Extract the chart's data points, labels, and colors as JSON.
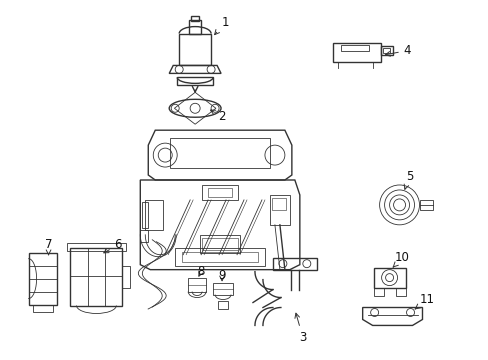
{
  "bg_color": "#ffffff",
  "line_color": "#333333",
  "label_color": "#111111",
  "figsize": [
    4.89,
    3.6
  ],
  "dpi": 100,
  "lw_main": 1.0,
  "lw_thin": 0.6,
  "label_fontsize": 8.5
}
